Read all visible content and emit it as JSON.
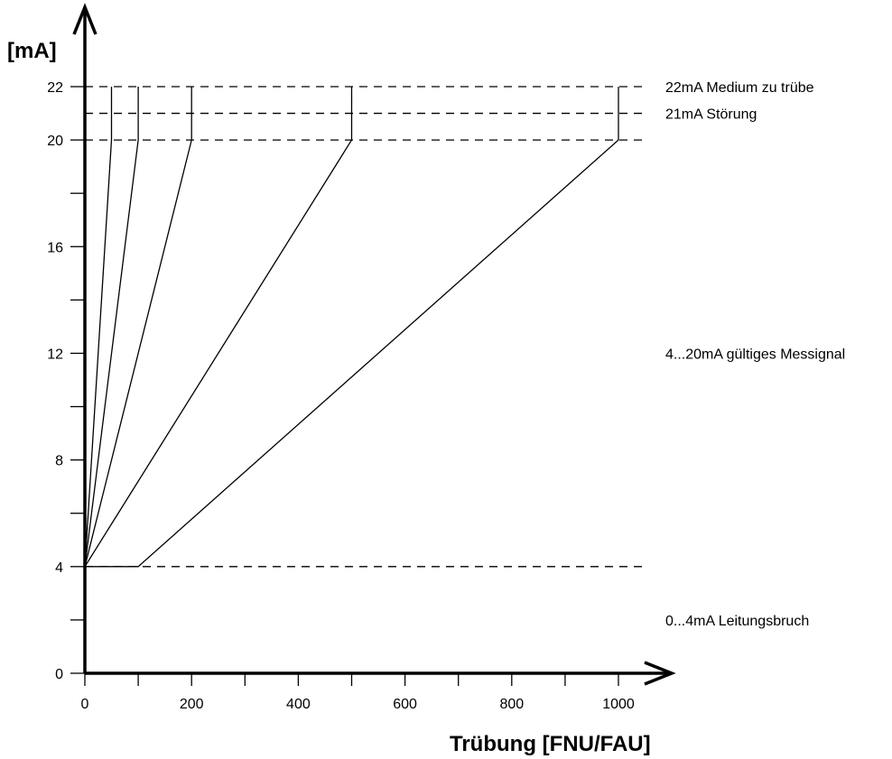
{
  "chart_data": {
    "type": "line",
    "title": "",
    "xlabel": "Trübung [FNU/FAU]",
    "ylabel": "[mA]",
    "xlim": [
      0,
      1000
    ],
    "ylim": [
      0,
      22
    ],
    "x_ticks": [
      0,
      200,
      400,
      600,
      800,
      1000
    ],
    "x_minor_ticks": [
      100,
      300,
      500,
      700,
      900
    ],
    "y_ticks": [
      0,
      4,
      8,
      12,
      16,
      20,
      22
    ],
    "y_minor_ticks": [
      2,
      6,
      10,
      14,
      18
    ],
    "grid": false,
    "reference_lines": [
      {
        "y": 22,
        "label": "22mA Medium zu trübe",
        "style": "dashed"
      },
      {
        "y": 21,
        "label": "21mA Störung",
        "style": "dashed"
      },
      {
        "y": 20,
        "label": "",
        "style": "dashed"
      },
      {
        "y": 4,
        "label": "",
        "style": "dashed"
      }
    ],
    "zone_labels": [
      {
        "y": 12,
        "label": "4...20mA gültiges Messignal"
      },
      {
        "y": 2,
        "label": "0...4mA Leitungsbruch"
      }
    ],
    "series": [
      {
        "points": [
          [
            0,
            4
          ],
          [
            50,
            20
          ],
          [
            50,
            22
          ]
        ]
      },
      {
        "points": [
          [
            0,
            4
          ],
          [
            100,
            20
          ],
          [
            100,
            22
          ]
        ]
      },
      {
        "points": [
          [
            0,
            4
          ],
          [
            200,
            20
          ],
          [
            200,
            22
          ]
        ]
      },
      {
        "points": [
          [
            0,
            4
          ],
          [
            500,
            20
          ],
          [
            500,
            22
          ]
        ]
      },
      {
        "points": [
          [
            0,
            4
          ],
          [
            100,
            4
          ],
          [
            1000,
            20
          ],
          [
            1000,
            22
          ]
        ]
      }
    ]
  }
}
